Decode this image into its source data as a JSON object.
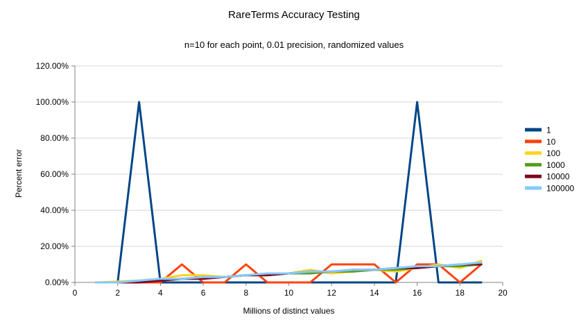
{
  "chart_data": {
    "type": "line",
    "title": "RareTerms Accuracy Testing",
    "subtitle": "n=10 for each point, 0.01 precision, randomized values",
    "xlabel": "Millions of distinct values",
    "ylabel": "Percent error",
    "xlim": [
      0,
      20
    ],
    "ylim_percent": [
      0,
      120
    ],
    "x_tick_values": [
      0,
      2,
      4,
      6,
      8,
      10,
      12,
      14,
      16,
      18,
      20
    ],
    "y_tick_values": [
      0,
      20,
      40,
      60,
      80,
      100,
      120
    ],
    "y_tick_labels": [
      "0.00%",
      "20.00%",
      "40.00%",
      "60.00%",
      "80.00%",
      "100.00%",
      "120.00%"
    ],
    "grid": true,
    "legend_position": "right",
    "x": [
      1,
      2,
      3,
      4,
      5,
      6,
      7,
      8,
      9,
      10,
      11,
      12,
      13,
      14,
      15,
      16,
      17,
      18,
      19
    ],
    "series": [
      {
        "name": "1",
        "color": "#004586",
        "values": [
          0,
          0,
          100,
          0,
          0,
          0,
          0,
          0,
          0,
          0,
          0,
          0,
          0,
          0,
          0,
          100,
          0,
          0,
          0
        ]
      },
      {
        "name": "10",
        "color": "#FF420E",
        "values": [
          0,
          0,
          0,
          0,
          10,
          0,
          0,
          10,
          0,
          0,
          0,
          10,
          10,
          10,
          0,
          10,
          10,
          0,
          10
        ]
      },
      {
        "name": "100",
        "color": "#FFD320",
        "values": [
          0,
          0.5,
          1,
          2,
          4,
          4,
          3,
          4,
          4,
          5,
          7,
          5,
          6,
          7,
          6,
          8,
          10,
          8,
          12
        ]
      },
      {
        "name": "1000",
        "color": "#579D1C",
        "values": [
          0,
          0,
          1,
          1,
          2,
          3,
          3,
          4,
          4,
          5,
          5,
          6,
          6,
          7,
          7,
          8,
          9,
          9,
          10
        ]
      },
      {
        "name": "10000",
        "color": "#7E0021",
        "values": [
          0,
          0,
          0,
          1,
          2,
          2,
          3,
          4,
          4,
          5,
          6,
          6,
          7,
          7,
          8,
          8,
          9,
          10,
          10
        ]
      },
      {
        "name": "100000",
        "color": "#83CAFF",
        "values": [
          0,
          0,
          1,
          2,
          2,
          3,
          3,
          4,
          5,
          5,
          6,
          6,
          7,
          7,
          8,
          9,
          9,
          10,
          11
        ]
      }
    ]
  }
}
